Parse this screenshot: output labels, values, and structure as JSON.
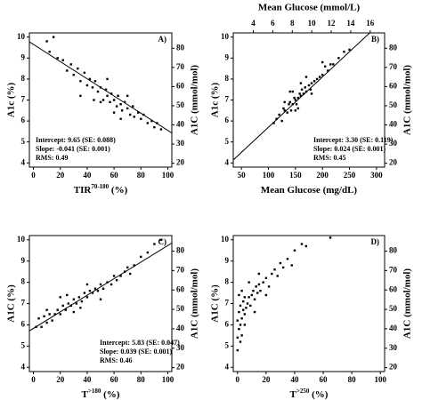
{
  "chart_data": [
    {
      "type": "scatter",
      "panel_label": "A)",
      "ylabel": "A1c (%)",
      "y2label": "A1C (mmol/mol)",
      "xlabel_parts": [
        "TIR",
        "70-180",
        " (%)"
      ],
      "xlim": [
        -3,
        103
      ],
      "xticks": [
        0,
        20,
        40,
        60,
        80,
        100
      ],
      "ylim": [
        3.8,
        10.2
      ],
      "yticks": [
        4,
        5,
        6,
        7,
        8,
        9,
        10
      ],
      "y2lim": [
        18.0,
        88.0
      ],
      "y2ticks": [
        20,
        30,
        40,
        50,
        60,
        70,
        80
      ],
      "color": "#000000",
      "fit": {
        "intercept": 9.65,
        "slope": -0.041
      },
      "annotations": [
        "Intercept: 9.65 (SE: 0.088)",
        "Slope: -0.041 (SE: 0.001)",
        "RMS: 0.49"
      ],
      "x": [
        12,
        18,
        22,
        25,
        28,
        30,
        33,
        35,
        38,
        40,
        42,
        44,
        46,
        48,
        50,
        52,
        54,
        55,
        57,
        58,
        60,
        62,
        63,
        65,
        66,
        68,
        70,
        72,
        74,
        75,
        78,
        80,
        82,
        85,
        88,
        90,
        92,
        95,
        45,
        60,
        70,
        35,
        55,
        65,
        50,
        15,
        10
      ],
      "values": [
        9.3,
        9.0,
        8.9,
        8.4,
        8.7,
        8.2,
        8.5,
        7.9,
        8.3,
        7.7,
        8.0,
        7.6,
        7.9,
        7.4,
        7.6,
        7.0,
        7.5,
        7.2,
        6.9,
        7.3,
        7.0,
        6.7,
        7.2,
        6.8,
        6.5,
        6.9,
        6.6,
        6.3,
        6.7,
        6.2,
        6.4,
        6.1,
        6.3,
        5.9,
        6.0,
        5.7,
        5.9,
        5.6,
        7.0,
        6.4,
        7.2,
        7.2,
        8.0,
        6.1,
        6.9,
        10.0,
        9.8
      ]
    },
    {
      "type": "scatter",
      "panel_label": "B)",
      "ylabel": "A1c (%)",
      "y2label": "A1C (mmol/mol)",
      "xlabel_parts": [
        "Mean Glucose (mg/dL)"
      ],
      "x2label": "Mean Glucose (mmol/L)",
      "xlim": [
        35,
        315
      ],
      "xticks": [
        50,
        100,
        150,
        200,
        250,
        300
      ],
      "x2lim": [
        1.943,
        17.48
      ],
      "x2ticks": [
        4,
        6,
        8,
        10,
        12,
        14,
        16
      ],
      "ylim": [
        3.8,
        10.2
      ],
      "yticks": [
        4,
        5,
        6,
        7,
        8,
        9,
        10
      ],
      "y2lim": [
        18.0,
        88.0
      ],
      "y2ticks": [
        20,
        30,
        40,
        50,
        60,
        70,
        80
      ],
      "color": "#000000",
      "fit": {
        "intercept": 3.3,
        "slope": 0.024
      },
      "annotations": [
        "Intercept: 3.30 (SE: 0.119)",
        "Slope: 0.024 (SE: 0.001)",
        "RMS: 0.45"
      ],
      "x": [
        110,
        115,
        120,
        125,
        128,
        130,
        135,
        138,
        140,
        142,
        145,
        148,
        150,
        152,
        155,
        158,
        160,
        162,
        165,
        168,
        170,
        175,
        178,
        180,
        185,
        190,
        195,
        200,
        205,
        210,
        215,
        220,
        230,
        240,
        250,
        140,
        150,
        160,
        130,
        170,
        180,
        155,
        145,
        200
      ],
      "values": [
        5.9,
        6.1,
        6.3,
        6.0,
        6.6,
        6.5,
        6.4,
        6.8,
        6.9,
        6.5,
        6.8,
        7.1,
        7.0,
        6.8,
        7.1,
        7.3,
        7.2,
        7.5,
        7.3,
        7.6,
        7.4,
        7.7,
        7.5,
        7.8,
        7.9,
        8.0,
        8.1,
        8.2,
        8.6,
        8.4,
        8.7,
        8.7,
        9.0,
        9.3,
        9.4,
        7.4,
        6.5,
        7.8,
        6.9,
        8.1,
        7.3,
        6.6,
        7.4,
        8.8
      ]
    },
    {
      "type": "scatter",
      "panel_label": "C)",
      "ylabel": "A1C (%)",
      "y2label": "A1C (mmol/mol)",
      "xlabel_parts": [
        "T",
        ">180",
        " (%)"
      ],
      "xlim": [
        -3,
        103
      ],
      "xticks": [
        0,
        20,
        40,
        60,
        80,
        100
      ],
      "ylim": [
        3.8,
        10.2
      ],
      "yticks": [
        4,
        5,
        6,
        7,
        8,
        9,
        10
      ],
      "y2lim": [
        18.0,
        88.0
      ],
      "y2ticks": [
        20,
        30,
        40,
        50,
        60,
        70,
        80
      ],
      "color": "#000000",
      "fit": {
        "intercept": 5.83,
        "slope": 0.039
      },
      "annotations": [
        "Intercept: 5.83 (SE: 0.047)",
        "Slope: 0.039 (SE: 0.001)",
        "RMS: 0.46"
      ],
      "x": [
        2,
        4,
        6,
        8,
        10,
        12,
        14,
        16,
        18,
        20,
        22,
        24,
        26,
        28,
        30,
        32,
        34,
        36,
        38,
        40,
        42,
        44,
        46,
        48,
        50,
        52,
        55,
        58,
        60,
        62,
        65,
        68,
        70,
        72,
        75,
        80,
        85,
        90,
        95,
        10,
        20,
        30,
        40,
        50,
        25,
        35
      ],
      "values": [
        5.9,
        6.3,
        5.9,
        6.4,
        6.1,
        6.5,
        6.2,
        6.5,
        6.7,
        6.5,
        6.9,
        6.7,
        7.0,
        6.9,
        7.2,
        7.0,
        7.3,
        7.1,
        7.5,
        7.3,
        7.6,
        7.5,
        7.7,
        7.6,
        7.9,
        7.7,
        8.0,
        7.9,
        8.3,
        8.1,
        8.3,
        8.5,
        8.7,
        8.4,
        8.8,
        9.2,
        9.4,
        9.8,
        10.0,
        6.7,
        7.3,
        6.6,
        7.9,
        7.2,
        7.4,
        6.8
      ]
    },
    {
      "type": "scatter",
      "panel_label": "D)",
      "ylabel": "A1C (%)",
      "y2label": "A1C (mmol/mol)",
      "xlabel_parts": [
        "T",
        ">250",
        " (%)"
      ],
      "xlim": [
        -3,
        103
      ],
      "xticks": [
        0,
        20,
        40,
        60,
        80,
        100
      ],
      "ylim": [
        3.8,
        10.2
      ],
      "yticks": [
        4,
        5,
        6,
        7,
        8,
        9,
        10
      ],
      "y2lim": [
        18.0,
        88.0
      ],
      "y2ticks": [
        20,
        30,
        40,
        50,
        60,
        70,
        80
      ],
      "color": "#000000",
      "x": [
        0,
        0,
        1,
        1,
        2,
        2,
        3,
        3,
        4,
        4,
        5,
        5,
        6,
        7,
        8,
        9,
        10,
        11,
        12,
        13,
        14,
        15,
        16,
        18,
        20,
        22,
        24,
        26,
        28,
        30,
        32,
        35,
        38,
        40,
        45,
        48,
        65,
        0,
        1,
        2,
        3,
        5,
        8,
        12,
        15,
        20
      ],
      "values": [
        5.4,
        6.2,
        5.8,
        6.6,
        6.0,
        6.9,
        6.3,
        5.5,
        6.7,
        7.1,
        6.5,
        7.3,
        6.8,
        7.0,
        7.3,
        6.9,
        7.4,
        7.6,
        7.2,
        7.8,
        7.5,
        7.9,
        7.6,
        8.0,
        8.2,
        7.8,
        8.4,
        8.6,
        8.3,
        8.9,
        8.7,
        9.1,
        8.8,
        9.5,
        9.8,
        9.7,
        10.1,
        4.8,
        7.4,
        5.2,
        7.6,
        6.0,
        8.0,
        6.6,
        8.4,
        7.4
      ]
    }
  ]
}
